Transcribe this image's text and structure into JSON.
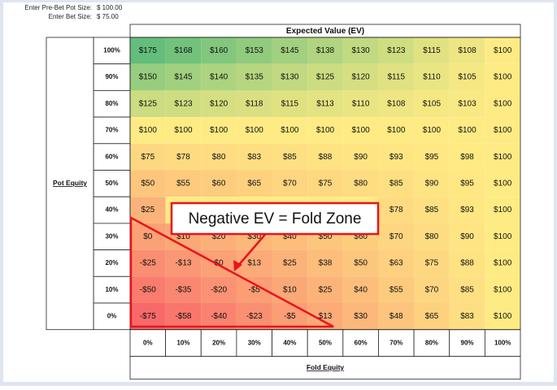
{
  "inputs": [
    {
      "label": "Enter Pre-Bet Pot Size:",
      "value": "$ 100.00"
    },
    {
      "label": "Enter Bet Size:",
      "value": "$ 75.00"
    }
  ],
  "table": {
    "title": "Expected Value (EV)",
    "row_axis": "Pot Equity",
    "column_axis": "Fold Equity",
    "columns": [
      "0%",
      "10%",
      "20%",
      "30%",
      "40%",
      "50%",
      "60%",
      "70%",
      "80%",
      "90%",
      "100%"
    ],
    "rows": [
      {
        "label": "100%",
        "cells": [
          "$175",
          "$168",
          "$160",
          "$153",
          "$145",
          "$138",
          "$130",
          "$123",
          "$115",
          "$108",
          "$100"
        ]
      },
      {
        "label": "90%",
        "cells": [
          "$150",
          "$145",
          "$140",
          "$135",
          "$130",
          "$125",
          "$120",
          "$115",
          "$110",
          "$105",
          "$100"
        ]
      },
      {
        "label": "80%",
        "cells": [
          "$125",
          "$123",
          "$120",
          "$118",
          "$115",
          "$113",
          "$110",
          "$108",
          "$105",
          "$103",
          "$100"
        ]
      },
      {
        "label": "70%",
        "cells": [
          "$100",
          "$100",
          "$100",
          "$100",
          "$100",
          "$100",
          "$100",
          "$100",
          "$100",
          "$100",
          "$100"
        ]
      },
      {
        "label": "60%",
        "cells": [
          "$75",
          "$78",
          "$80",
          "$83",
          "$85",
          "$88",
          "$90",
          "$93",
          "$95",
          "$98",
          "$100"
        ]
      },
      {
        "label": "50%",
        "cells": [
          "$50",
          "$55",
          "$60",
          "$65",
          "$70",
          "$75",
          "$80",
          "$85",
          "$90",
          "$95",
          "$100"
        ]
      },
      {
        "label": "40%",
        "cells": [
          "$25",
          null,
          null,
          null,
          null,
          null,
          null,
          "$78",
          "$85",
          "$93",
          "$100"
        ]
      },
      {
        "label": "30%",
        "cells": [
          "$0",
          "$10",
          "$20",
          "$30",
          "$40",
          "$50",
          "$60",
          "$70",
          "$80",
          "$90",
          "$100"
        ]
      },
      {
        "label": "20%",
        "cells": [
          "-$25",
          "-$13",
          "$0",
          "$13",
          "$25",
          "$38",
          "$50",
          "$63",
          "$75",
          "$88",
          "$100"
        ]
      },
      {
        "label": "10%",
        "cells": [
          "-$50",
          "-$35",
          "-$20",
          "-$5",
          "$10",
          "$25",
          "$40",
          "$55",
          "$70",
          "$85",
          "$100"
        ]
      },
      {
        "label": "0%",
        "cells": [
          "-$75",
          "-$58",
          "-$40",
          "-$23",
          "-$5",
          "$13",
          "$30",
          "$48",
          "$65",
          "$83",
          "$100"
        ]
      }
    ]
  },
  "callout": "Negative EV = Fold Zone"
}
